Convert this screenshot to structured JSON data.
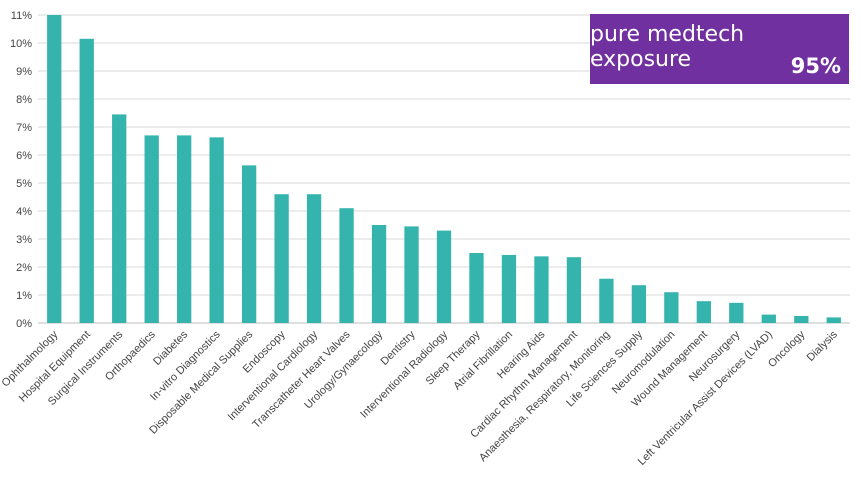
{
  "chart_data": {
    "type": "bar",
    "title": "",
    "xlabel": "",
    "ylabel": "",
    "ylim": [
      0,
      11
    ],
    "ytick_step": 1,
    "ytick_labels": [
      "0%",
      "1%",
      "2%",
      "3%",
      "4%",
      "5%",
      "6%",
      "7%",
      "8%",
      "9%",
      "10%",
      "11%"
    ],
    "grid": true,
    "bar_color": "#35b3ad",
    "categories": [
      "Ophthalmology",
      "Hospital Equipment",
      "Surgical Instruments",
      "Orthopaedics",
      "Diabetes",
      "In-vitro Diagnostics",
      "Disposable Medical Supplies",
      "Endoscopy",
      "Interventional Cardiology",
      "Transcatheter Heart Valves",
      "Urology/Gynaecology",
      "Dentistry",
      "Interventional Radiology",
      "Sleep Therapy",
      "Atrial Fibrillation",
      "Hearing Aids",
      "Cardiac Rhythm Management",
      "Anaesthesia, Respiratory, Monitoring",
      "Life Sciences Supply",
      "Neuromodulation",
      "Wound Management",
      "Neurosurgery",
      "Left Ventricular Assist Devices (LVAD)",
      "Oncology",
      "Dialysis"
    ],
    "values": [
      11.0,
      10.15,
      7.45,
      6.7,
      6.7,
      6.63,
      5.63,
      4.6,
      4.6,
      4.1,
      3.5,
      3.45,
      3.3,
      2.5,
      2.43,
      2.38,
      2.35,
      1.58,
      1.35,
      1.1,
      0.78,
      0.72,
      0.3,
      0.25,
      0.2
    ]
  },
  "badge": {
    "title": "pure medtech exposure",
    "value": "95%",
    "color": "#7030a0"
  }
}
